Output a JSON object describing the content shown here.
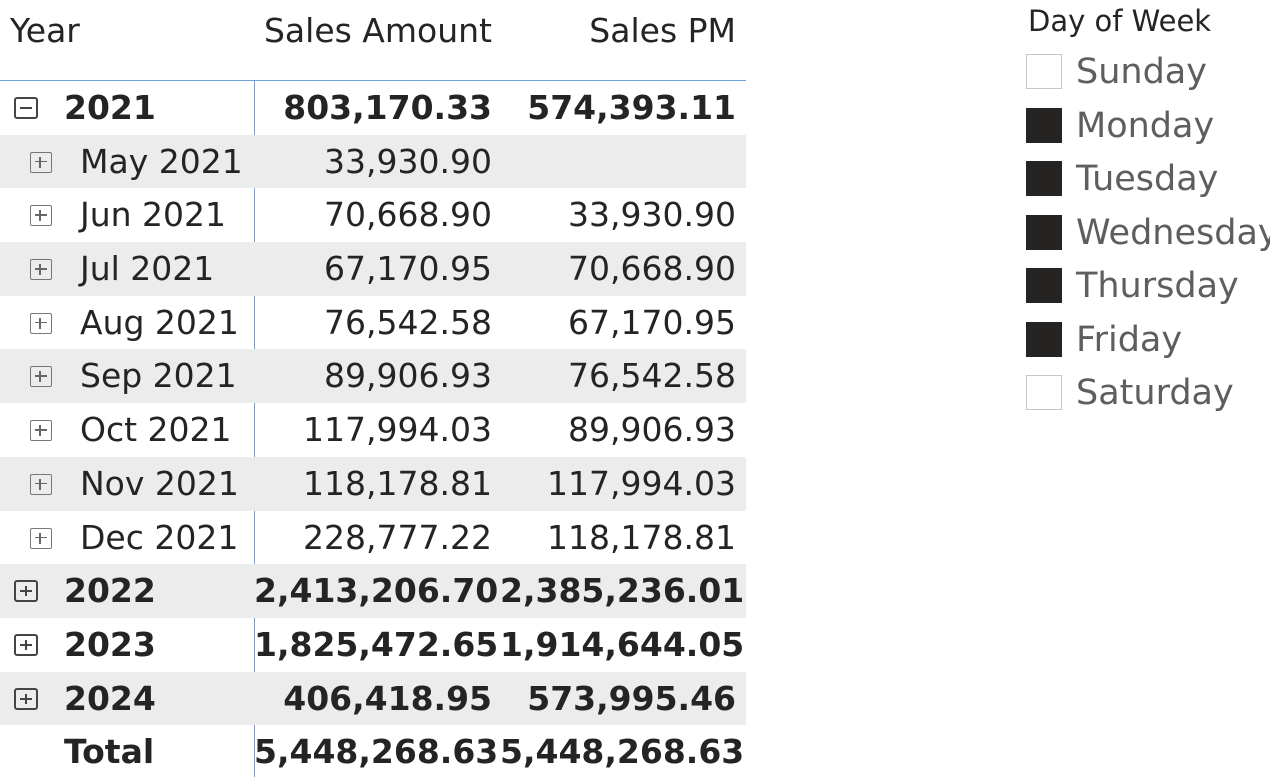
{
  "matrix": {
    "headers": {
      "year": "Year",
      "sales_amount": "Sales Amount",
      "sales_pm": "Sales PM"
    },
    "rows": [
      {
        "label": "2021",
        "sales": "803,170.33",
        "pm": "574,393.11"
      },
      {
        "label": "May 2021",
        "sales": "33,930.90",
        "pm": ""
      },
      {
        "label": "Jun 2021",
        "sales": "70,668.90",
        "pm": "33,930.90"
      },
      {
        "label": "Jul 2021",
        "sales": "67,170.95",
        "pm": "70,668.90"
      },
      {
        "label": "Aug 2021",
        "sales": "76,542.58",
        "pm": "67,170.95"
      },
      {
        "label": "Sep 2021",
        "sales": "89,906.93",
        "pm": "76,542.58"
      },
      {
        "label": "Oct 2021",
        "sales": "117,994.03",
        "pm": "89,906.93"
      },
      {
        "label": "Nov 2021",
        "sales": "118,178.81",
        "pm": "117,994.03"
      },
      {
        "label": "Dec 2021",
        "sales": "228,777.22",
        "pm": "118,178.81"
      },
      {
        "label": "2022",
        "sales": "2,413,206.70",
        "pm": "2,385,236.01"
      },
      {
        "label": "2023",
        "sales": "1,825,472.65",
        "pm": "1,914,644.05"
      },
      {
        "label": "2024",
        "sales": "406,418.95",
        "pm": "573,995.46"
      },
      {
        "label": "Total",
        "sales": "5,448,268.63",
        "pm": "5,448,268.63"
      }
    ]
  },
  "slicer": {
    "title": "Day of Week",
    "items": [
      {
        "label": "Sunday",
        "checked": false
      },
      {
        "label": "Monday",
        "checked": true
      },
      {
        "label": "Tuesday",
        "checked": true
      },
      {
        "label": "Wednesday",
        "checked": true
      },
      {
        "label": "Thursday",
        "checked": true
      },
      {
        "label": "Friday",
        "checked": true
      },
      {
        "label": "Saturday",
        "checked": false
      }
    ]
  },
  "colors": {
    "row_shade": "#ececec",
    "divider": "#6ea0e0",
    "checked_box": "#252423",
    "unchecked_box_border": "#c8c6c4",
    "text": "#252423",
    "slicer_text": "#605e5c"
  }
}
